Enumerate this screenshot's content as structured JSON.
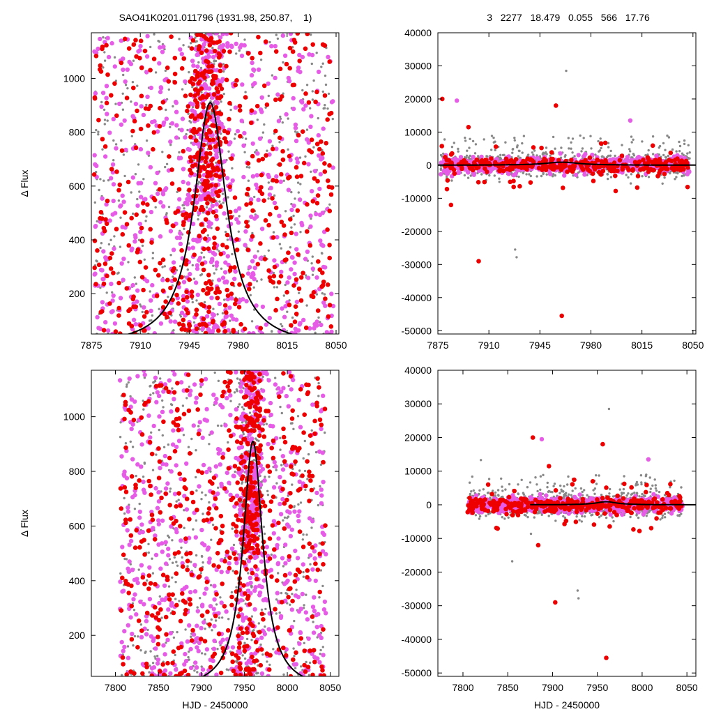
{
  "header": {
    "left_title": "SAO41K0201.011796 (1931.98, 250.87,    1)",
    "right_title": "3   2277   18.479   0.055   566   17.76"
  },
  "colors": {
    "gray_points": "#888888",
    "magenta_points": "#e65ce6",
    "red_points": "#ee0000",
    "model_curve": "#000000"
  },
  "chart_data": [
    {
      "panel": "top-left",
      "type": "scatter",
      "xlim": [
        7875,
        8052
      ],
      "ylim": [
        50,
        1170
      ],
      "xticks": [
        7875,
        7910,
        7945,
        7980,
        8015,
        8050
      ],
      "yticks": [
        200,
        400,
        600,
        800,
        1000
      ],
      "ylabel": "Δ Flux",
      "xlabel": "",
      "grid": false,
      "model": {
        "type": "lorentzian",
        "peak_x": 7960,
        "peak_y": 910,
        "baseline": 0,
        "half_width": 14
      },
      "series": [
        {
          "color": "gray",
          "x_range": [
            7877,
            8048
          ],
          "y_range": [
            50,
            1170
          ],
          "concentration_x": 7958
        },
        {
          "color": "magenta",
          "x_range": [
            7877,
            8048
          ],
          "y_range": [
            50,
            1170
          ],
          "concentration_x": 7958
        },
        {
          "color": "red",
          "x_range": [
            7877,
            8048
          ],
          "y_range": [
            50,
            1170
          ],
          "concentration_x": 7958
        }
      ]
    },
    {
      "panel": "top-right",
      "type": "scatter",
      "xlim": [
        7875,
        8052
      ],
      "ylim": [
        -51000,
        40000
      ],
      "xticks": [
        7875,
        7910,
        7945,
        7980,
        8015,
        8050
      ],
      "yticks": [
        40000,
        30000,
        20000,
        10000,
        0,
        -10000,
        -20000,
        -30000,
        -40000,
        -50000
      ],
      "ylabel": "",
      "xlabel": "",
      "grid": false,
      "model": {
        "type": "lorentzian",
        "peak_x": 7960,
        "peak_y": 910,
        "baseline": 0,
        "half_width": 14
      },
      "outliers": [
        {
          "color": "red",
          "x": 7878,
          "y": 20000
        },
        {
          "color": "magenta",
          "x": 7888,
          "y": 19500
        },
        {
          "color": "red",
          "x": 7903,
          "y": -29000
        },
        {
          "color": "red",
          "x": 7884,
          "y": -12000
        },
        {
          "color": "gray",
          "x": 7928,
          "y": -25500
        },
        {
          "color": "gray",
          "x": 7929,
          "y": -27800
        },
        {
          "color": "red",
          "x": 7956,
          "y": 18000
        },
        {
          "color": "gray",
          "x": 7963,
          "y": 28500
        },
        {
          "color": "red",
          "x": 7960,
          "y": -45500
        },
        {
          "color": "red",
          "x": 7896,
          "y": 11500
        },
        {
          "color": "red",
          "x": 7997,
          "y": -7800
        },
        {
          "color": "magenta",
          "x": 8007,
          "y": 13500
        }
      ]
    },
    {
      "panel": "bottom-left",
      "type": "scatter",
      "xlim": [
        7772,
        8060
      ],
      "ylim": [
        50,
        1170
      ],
      "xticks": [
        7800,
        7850,
        7900,
        7950,
        8000,
        8050
      ],
      "yticks": [
        200,
        400,
        600,
        800,
        1000
      ],
      "ylabel": "Δ Flux",
      "xlabel": "HJD - 2450000",
      "grid": false,
      "model": {
        "type": "lorentzian",
        "peak_x": 7960,
        "peak_y": 910,
        "baseline": 0,
        "half_width": 14
      },
      "series": [
        {
          "color": "gray",
          "x_range": [
            7805,
            8045
          ],
          "y_range": [
            50,
            1170
          ],
          "concentration_x": 7958
        },
        {
          "color": "magenta",
          "x_range": [
            7805,
            8045
          ],
          "y_range": [
            50,
            1170
          ],
          "concentration_x": 7958
        },
        {
          "color": "red",
          "x_range": [
            7805,
            8045
          ],
          "y_range": [
            50,
            1170
          ],
          "concentration_x": 7958
        }
      ]
    },
    {
      "panel": "bottom-right",
      "type": "scatter",
      "xlim": [
        7772,
        8060
      ],
      "ylim": [
        -51000,
        40000
      ],
      "xticks": [
        7800,
        7850,
        7900,
        7950,
        8000,
        8050
      ],
      "yticks": [
        40000,
        30000,
        20000,
        10000,
        0,
        -10000,
        -20000,
        -30000,
        -40000,
        -50000
      ],
      "ylabel": "",
      "xlabel": "HJD - 2450000",
      "grid": false,
      "model": {
        "type": "lorentzian",
        "peak_x": 7960,
        "peak_y": 910,
        "baseline": 0,
        "half_width": 14
      },
      "outliers": [
        {
          "color": "red",
          "x": 7878,
          "y": 20000
        },
        {
          "color": "magenta",
          "x": 7888,
          "y": 19500
        },
        {
          "color": "gray",
          "x": 7820,
          "y": 13300
        },
        {
          "color": "red",
          "x": 7903,
          "y": -29000
        },
        {
          "color": "red",
          "x": 7884,
          "y": -12000
        },
        {
          "color": "gray",
          "x": 7855,
          "y": -16800
        },
        {
          "color": "gray",
          "x": 7928,
          "y": -25500
        },
        {
          "color": "gray",
          "x": 7929,
          "y": -27800
        },
        {
          "color": "red",
          "x": 7956,
          "y": 18000
        },
        {
          "color": "gray",
          "x": 7963,
          "y": 28500
        },
        {
          "color": "red",
          "x": 7960,
          "y": -45500
        },
        {
          "color": "red",
          "x": 7896,
          "y": 11500
        },
        {
          "color": "red",
          "x": 7997,
          "y": -7800
        },
        {
          "color": "magenta",
          "x": 8007,
          "y": 13500
        }
      ]
    }
  ]
}
